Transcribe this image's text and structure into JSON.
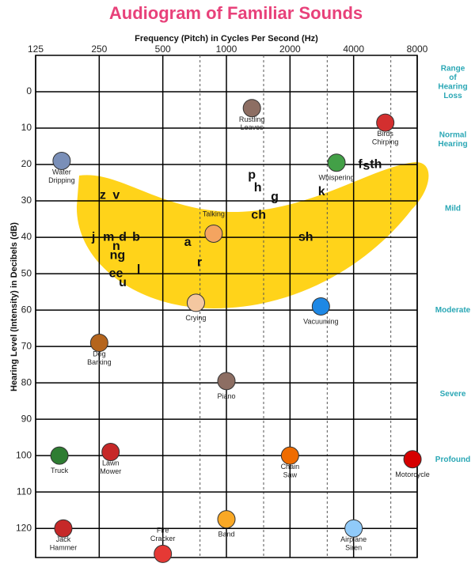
{
  "chart_data": {
    "type": "scatter",
    "title": "Audiogram of Familiar Sounds",
    "x_label": "Frequency (Pitch) in Cycles Per Second (Hz)",
    "y_label": "Hearing Level (Intensity) in Decibels (dB)",
    "log_x": true,
    "y_inverted": true,
    "xlim": [
      125,
      8000
    ],
    "xticks": [
      125,
      250,
      500,
      1000,
      2000,
      4000,
      8000
    ],
    "minor_xticks": [
      750,
      1500,
      3000,
      6000
    ],
    "ylim": [
      -10,
      128
    ],
    "yticks": [
      0,
      10,
      20,
      30,
      40,
      50,
      60,
      70,
      80,
      90,
      100,
      110,
      120
    ],
    "grid": true,
    "range_title": "Range of Hearing Loss",
    "hearing_ranges": [
      {
        "label": "Normal Hearing",
        "y": 13
      },
      {
        "label": "Mild",
        "y": 32
      },
      {
        "label": "Moderate",
        "y": 60
      },
      {
        "label": "Severe",
        "y": 83
      },
      {
        "label": "Profound",
        "y": 101
      }
    ],
    "phonemes": [
      {
        "label": "z",
        "x": 260,
        "y": 28.5
      },
      {
        "label": "v",
        "x": 301,
        "y": 28.5
      },
      {
        "label": "j",
        "x": 235,
        "y": 40
      },
      {
        "label": "m",
        "x": 277,
        "y": 40
      },
      {
        "label": "d",
        "x": 323,
        "y": 40
      },
      {
        "label": "b",
        "x": 374,
        "y": 40
      },
      {
        "label": "n",
        "x": 301,
        "y": 42.5
      },
      {
        "label": "ng",
        "x": 305,
        "y": 45
      },
      {
        "label": "ee",
        "x": 300,
        "y": 50
      },
      {
        "label": "u",
        "x": 323,
        "y": 52.5
      },
      {
        "label": "l",
        "x": 384,
        "y": 49
      },
      {
        "label": "a",
        "x": 656,
        "y": 41.5
      },
      {
        "label": "r",
        "x": 746,
        "y": 47
      },
      {
        "label": "p",
        "x": 1320,
        "y": 23
      },
      {
        "label": "h",
        "x": 1408,
        "y": 26.5
      },
      {
        "label": "g",
        "x": 1693,
        "y": 29
      },
      {
        "label": "ch",
        "x": 1420,
        "y": 34
      },
      {
        "label": "sh",
        "x": 2375,
        "y": 40
      },
      {
        "label": "k",
        "x": 2820,
        "y": 27.5
      },
      {
        "label": "f",
        "x": 4300,
        "y": 20
      },
      {
        "label": "s",
        "x": 4600,
        "y": 20.5
      },
      {
        "label": "th",
        "x": 5100,
        "y": 20
      }
    ],
    "sounds": [
      {
        "label": "Water Dripping",
        "x": 166,
        "y": 19,
        "color": "#7a8fb8"
      },
      {
        "label": "Dog Barking",
        "x": 250,
        "y": 69,
        "color": "#b5651d"
      },
      {
        "label": "Truck",
        "x": 162,
        "y": 100,
        "color": "#2e7d32"
      },
      {
        "label": "Lawn Mower",
        "x": 283,
        "y": 99,
        "color": "#c62828"
      },
      {
        "label": "Jack Hammer",
        "x": 169,
        "y": 120,
        "color": "#c62828"
      },
      {
        "label": "Fire Cracker",
        "x": 500,
        "y": 127,
        "color": "#e53935",
        "label_side": "above"
      },
      {
        "label": "Band",
        "x": 1000,
        "y": 117.5,
        "color": "#f9a825"
      },
      {
        "label": "Crying",
        "x": 717,
        "y": 58,
        "color": "#f4c7a0"
      },
      {
        "label": "Talking",
        "x": 870,
        "y": 39,
        "color": "#f4a460",
        "label_side": "above"
      },
      {
        "label": "Piano",
        "x": 1000,
        "y": 79.5,
        "color": "#8d6e63"
      },
      {
        "label": "Rustling Leaves",
        "x": 1320,
        "y": 4.5,
        "color": "#8d6e63"
      },
      {
        "label": "Birds Chirping",
        "x": 5650,
        "y": 8.5,
        "color": "#d32f2f"
      },
      {
        "label": "Whispering",
        "x": 3320,
        "y": 19.5,
        "color": "#43a047"
      },
      {
        "label": "Vacuuming",
        "x": 2800,
        "y": 59,
        "color": "#1e88e5"
      },
      {
        "label": "Chain Saw",
        "x": 2000,
        "y": 100,
        "color": "#ef6c00"
      },
      {
        "label": "Motorcycle",
        "x": 7600,
        "y": 101,
        "color": "#d50000"
      },
      {
        "label": "Airplane Siren",
        "x": 4000,
        "y": 120,
        "color": "#90caf9"
      }
    ]
  }
}
